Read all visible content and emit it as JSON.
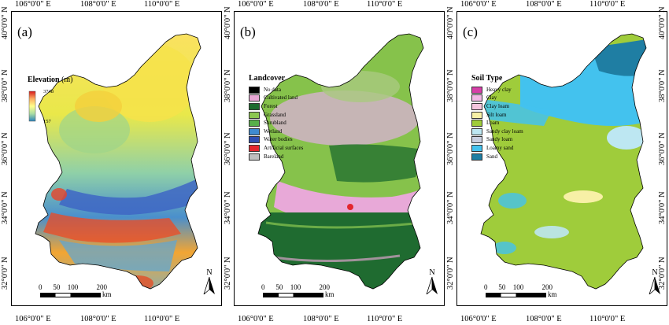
{
  "lon_labels": [
    "106°0'0\" E",
    "108°0'0\" E",
    "110°0'0\" E"
  ],
  "lat_labels": [
    "32°0'0\" N",
    "34°0'0\" N",
    "36°0'0\" N",
    "38°0'0\" N",
    "40°0'0\" N"
  ],
  "scale": {
    "ticks": [
      "0",
      "50",
      "100",
      "200"
    ],
    "unit": "km"
  },
  "north_label": "N",
  "panels": {
    "a": {
      "label": "(a)",
      "legend_title": "Elevation",
      "legend_unit": "(m)",
      "max_value": "3748",
      "min_value": "157",
      "ramp_colors": [
        "#d7191c",
        "#fdae61",
        "#ffff8c",
        "#abdda4",
        "#2b83ba",
        "#3b5bbf"
      ]
    },
    "b": {
      "label": "(b)",
      "legend_title": "Landcover",
      "classes": [
        {
          "name": "No data",
          "color": "#000000"
        },
        {
          "name": "Cultivated land",
          "color": "#e8a7d6"
        },
        {
          "name": "Forest",
          "color": "#1e6b2f"
        },
        {
          "name": "Grassland",
          "color": "#8cc751"
        },
        {
          "name": "Shrubland",
          "color": "#58b04a"
        },
        {
          "name": "Wetland",
          "color": "#3f8bd1"
        },
        {
          "name": "Water bodies",
          "color": "#2f4fb3"
        },
        {
          "name": "Artificial surfaces",
          "color": "#e3262e"
        },
        {
          "name": "Bareland",
          "color": "#bfbfbf"
        }
      ]
    },
    "c": {
      "label": "(c)",
      "legend_title": "Soil Type",
      "classes": [
        {
          "name": "Heavy clay",
          "color": "#d63fa8"
        },
        {
          "name": "Clay",
          "color": "#f2b8e6"
        },
        {
          "name": "Clay loam",
          "color": "#f4c6dd"
        },
        {
          "name": "Silt loam",
          "color": "#f7f0a6"
        },
        {
          "name": "Loam",
          "color": "#9fcc3b"
        },
        {
          "name": "Sandy clay loam",
          "color": "#bde7f2"
        },
        {
          "name": "Sandy loam",
          "color": "#c9cfe0"
        },
        {
          "name": "Loamy sand",
          "color": "#43c2ee"
        },
        {
          "name": "Sand",
          "color": "#1f7ea3"
        }
      ]
    }
  }
}
